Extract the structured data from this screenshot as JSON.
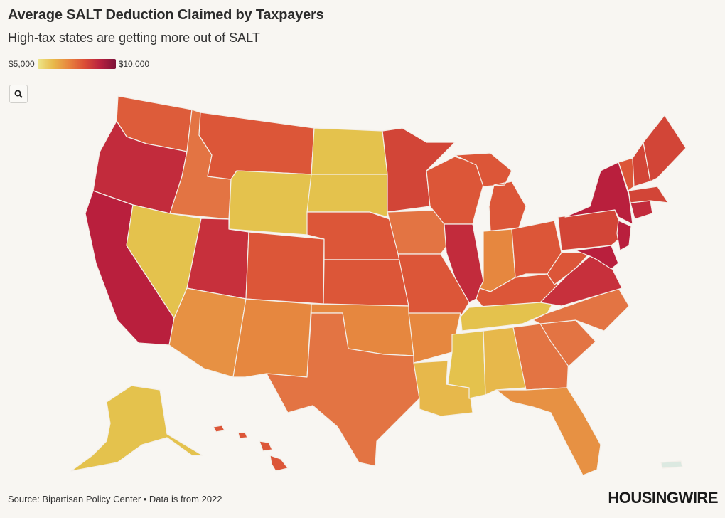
{
  "title": "Average SALT Deduction Claimed by Taxpayers",
  "subtitle": "High-tax states are getting more out of SALT",
  "legend": {
    "min_label": "$5,000",
    "max_label": "$10,000",
    "scale_colors": [
      "#ede68a",
      "#e8b94a",
      "#e8843e",
      "#db4d36",
      "#b8213f",
      "#7d1238"
    ]
  },
  "search_icon": "search-icon",
  "source": "Source: Bipartisan Policy Center • Data is from 2022",
  "logo": "HOUSINGWIRE",
  "state_colors": {
    "yellow": "#e4c24d",
    "gold": "#e7b84b",
    "light_orange": "#e79143",
    "orange": "#e37443",
    "red_orange": "#dc5638",
    "red": "#d24537",
    "crimson": "#c22b3c",
    "deep_red": "#b91f3d",
    "territory": "#dce9e1"
  }
}
